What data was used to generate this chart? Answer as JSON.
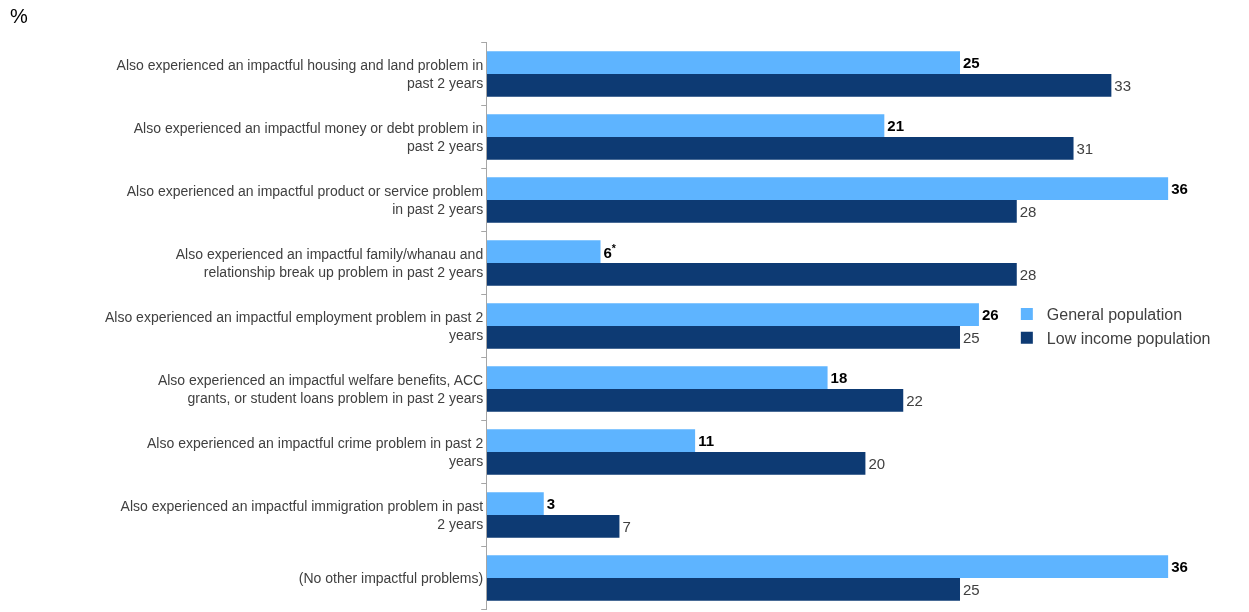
{
  "chart_data": {
    "type": "bar",
    "orientation": "horizontal",
    "title": "%",
    "categories": [
      "Also experienced an impactful housing and land problem in past 2 years",
      "Also experienced an impactful money or debt problem in past 2 years",
      "Also experienced an impactful product or service problem in past 2 years",
      "Also experienced an impactful family/whanau and relationship break up problem in past 2 years",
      "Also experienced an impactful employment problem in past 2 years",
      "Also experienced an impactful welfare benefits, ACC grants, or student loans problem in past 2 years",
      "Also experienced an impactful crime problem in past 2 years",
      "Also experienced an impactful immigration problem in past 2 years",
      "(No other impactful problems)"
    ],
    "series": [
      {
        "name": "General population",
        "color": "#5eb4ff",
        "values": [
          25,
          21,
          36,
          6,
          26,
          18,
          11,
          3,
          36
        ],
        "value_labels": [
          "25",
          "21",
          "36",
          "6$^{*}$",
          "26",
          "18",
          "11",
          "3",
          "36"
        ]
      },
      {
        "name": "Low income population",
        "color": "#0d3a73",
        "values": [
          33,
          31,
          28,
          28,
          25,
          22,
          20,
          7,
          25
        ]
      }
    ],
    "data_labels": true,
    "legend": "right"
  }
}
